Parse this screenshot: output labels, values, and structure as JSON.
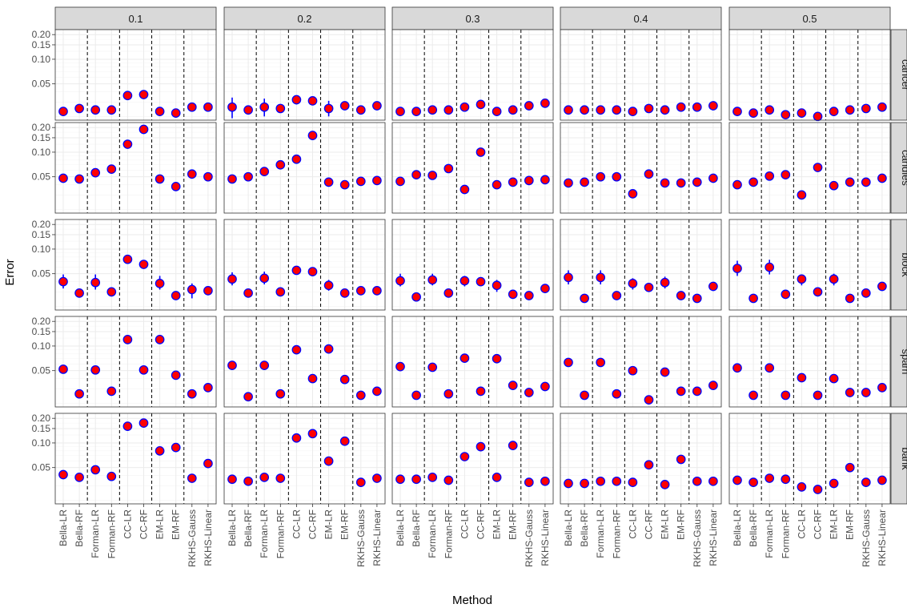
{
  "chart_data": {
    "type": "scatter",
    "xlabel": "Method",
    "ylabel": "Error",
    "y_scale": "log",
    "y_ticks": [
      0.05,
      0.1,
      0.15,
      0.2
    ],
    "y_tick_labels": [
      "0.05",
      "0.10",
      "0.15",
      "0.20"
    ],
    "methods": [
      "Bella-LR",
      "Bella-RF",
      "Forman-LR",
      "Forman-RF",
      "CC-LR",
      "CC-RF",
      "EM-LR",
      "EM-RF",
      "RKHS-Gauss",
      "RKHS-Linear"
    ],
    "dashed_lines_after_method_index": [
      1,
      3,
      5,
      7
    ],
    "columns": [
      "0.1",
      "0.2",
      "0.3",
      "0.4",
      "0.5"
    ],
    "rows": [
      "cancer",
      "candles",
      "block",
      "spam",
      "bank"
    ],
    "point_color": "#ff0000",
    "point_outline": "#0000ff",
    "errorbar_color": "#0000ff",
    "series": [
      {
        "row": "cancer",
        "col": "0.1",
        "values": [
          0.023,
          0.025,
          0.024,
          0.024,
          0.036,
          0.037,
          0.023,
          0.022,
          0.026,
          0.026
        ],
        "err": [
          null,
          null,
          null,
          null,
          null,
          null,
          null,
          null,
          null,
          null
        ]
      },
      {
        "row": "cancer",
        "col": "0.2",
        "values": [
          0.026,
          0.024,
          0.026,
          0.025,
          0.032,
          0.031,
          0.025,
          0.027,
          0.024,
          0.027
        ],
        "err": [
          [
            0.019,
            0.034
          ],
          null,
          [
            0.02,
            0.033
          ],
          null,
          [
            0.028,
            0.036
          ],
          null,
          [
            0.02,
            0.031
          ],
          null,
          null,
          null
        ]
      },
      {
        "row": "cancer",
        "col": "0.3",
        "values": [
          0.023,
          0.023,
          0.024,
          0.024,
          0.026,
          0.028,
          0.023,
          0.024,
          0.027,
          0.029
        ],
        "err": [
          null,
          null,
          null,
          null,
          null,
          null,
          null,
          null,
          null,
          null
        ]
      },
      {
        "row": "cancer",
        "col": "0.4",
        "values": [
          0.024,
          0.024,
          0.024,
          0.024,
          0.023,
          0.025,
          0.024,
          0.026,
          0.026,
          0.027
        ],
        "err": [
          null,
          null,
          null,
          null,
          null,
          null,
          null,
          null,
          null,
          null
        ]
      },
      {
        "row": "cancer",
        "col": "0.5",
        "values": [
          0.023,
          0.022,
          0.024,
          0.021,
          0.022,
          0.02,
          0.023,
          0.024,
          0.025,
          0.026
        ],
        "err": [
          null,
          null,
          null,
          null,
          null,
          null,
          null,
          null,
          null,
          null
        ]
      },
      {
        "row": "candles",
        "col": "0.1",
        "values": [
          0.048,
          0.047,
          0.056,
          0.062,
          0.125,
          0.19,
          0.047,
          0.038,
          0.054,
          0.05
        ],
        "err": [
          null,
          null,
          null,
          null,
          null,
          null,
          null,
          null,
          null,
          null
        ]
      },
      {
        "row": "candles",
        "col": "0.2",
        "values": [
          0.047,
          0.05,
          0.058,
          0.07,
          0.082,
          0.16,
          0.043,
          0.04,
          0.044,
          0.045
        ],
        "err": [
          null,
          null,
          null,
          null,
          null,
          null,
          null,
          null,
          null,
          null
        ]
      },
      {
        "row": "candles",
        "col": "0.3",
        "values": [
          0.044,
          0.053,
          0.052,
          0.063,
          0.035,
          0.1,
          0.04,
          0.043,
          0.045,
          0.046
        ],
        "err": [
          null,
          null,
          null,
          null,
          null,
          null,
          null,
          null,
          null,
          null
        ]
      },
      {
        "row": "candles",
        "col": "0.4",
        "values": [
          0.042,
          0.043,
          0.05,
          0.05,
          0.031,
          0.054,
          0.042,
          0.042,
          0.043,
          0.048
        ],
        "err": [
          null,
          null,
          null,
          null,
          null,
          null,
          null,
          null,
          null,
          null
        ]
      },
      {
        "row": "candles",
        "col": "0.5",
        "values": [
          0.04,
          0.043,
          0.051,
          0.053,
          0.03,
          0.065,
          0.039,
          0.043,
          0.043,
          0.048
        ],
        "err": [
          null,
          null,
          null,
          null,
          null,
          null,
          null,
          null,
          null,
          null
        ]
      },
      {
        "row": "block",
        "col": "0.1",
        "values": [
          0.04,
          0.029,
          0.039,
          0.03,
          0.075,
          0.065,
          0.038,
          0.027,
          0.032,
          0.031
        ],
        "err": [
          [
            0.033,
            0.049
          ],
          null,
          [
            0.032,
            0.049
          ],
          null,
          null,
          null,
          [
            0.032,
            0.047
          ],
          null,
          [
            0.025,
            0.038
          ],
          null
        ]
      },
      {
        "row": "block",
        "col": "0.2",
        "values": [
          0.043,
          0.029,
          0.044,
          0.03,
          0.055,
          0.053,
          0.036,
          0.029,
          0.031,
          0.031
        ],
        "err": [
          [
            0.036,
            0.052
          ],
          null,
          [
            0.037,
            0.053
          ],
          null,
          null,
          null,
          [
            0.031,
            0.042
          ],
          null,
          null,
          null
        ]
      },
      {
        "row": "block",
        "col": "0.3",
        "values": [
          0.041,
          0.026,
          0.042,
          0.029,
          0.041,
          0.04,
          0.036,
          0.028,
          0.027,
          0.033
        ],
        "err": [
          [
            0.035,
            0.05
          ],
          null,
          [
            0.036,
            0.05
          ],
          null,
          [
            0.035,
            0.047
          ],
          null,
          [
            0.03,
            0.042
          ],
          null,
          null,
          null
        ]
      },
      {
        "row": "block",
        "col": "0.4",
        "values": [
          0.045,
          0.025,
          0.045,
          0.027,
          0.038,
          0.034,
          0.039,
          0.027,
          0.025,
          0.035
        ],
        "err": [
          [
            0.037,
            0.055
          ],
          null,
          [
            0.037,
            0.055
          ],
          null,
          [
            0.032,
            0.044
          ],
          null,
          [
            0.033,
            0.046
          ],
          null,
          null,
          null
        ]
      },
      {
        "row": "block",
        "col": "0.5",
        "values": [
          0.058,
          0.025,
          0.06,
          0.028,
          0.043,
          0.03,
          0.043,
          0.025,
          0.029,
          0.035
        ],
        "err": [
          [
            0.047,
            0.072
          ],
          null,
          [
            0.049,
            0.074
          ],
          null,
          [
            0.036,
            0.049
          ],
          null,
          [
            0.036,
            0.05
          ],
          null,
          null,
          null
        ]
      },
      {
        "row": "spam",
        "col": "0.1",
        "values": [
          0.052,
          0.026,
          0.051,
          0.028,
          0.12,
          0.051,
          0.12,
          0.044,
          0.026,
          0.031
        ],
        "err": [
          null,
          null,
          null,
          null,
          null,
          null,
          null,
          null,
          null,
          null
        ]
      },
      {
        "row": "spam",
        "col": "0.2",
        "values": [
          0.058,
          0.024,
          0.058,
          0.026,
          0.09,
          0.04,
          0.092,
          0.039,
          0.025,
          0.028
        ],
        "err": [
          null,
          null,
          null,
          null,
          null,
          null,
          null,
          null,
          null,
          null
        ]
      },
      {
        "row": "spam",
        "col": "0.3",
        "values": [
          0.056,
          0.025,
          0.055,
          0.026,
          0.071,
          0.028,
          0.07,
          0.033,
          0.027,
          0.032
        ],
        "err": [
          null,
          null,
          null,
          null,
          null,
          null,
          null,
          null,
          null,
          null
        ]
      },
      {
        "row": "spam",
        "col": "0.4",
        "values": [
          0.063,
          0.025,
          0.063,
          0.026,
          0.05,
          0.022,
          0.048,
          0.028,
          0.028,
          0.033
        ],
        "err": [
          null,
          null,
          null,
          null,
          null,
          null,
          null,
          null,
          null,
          null
        ]
      },
      {
        "row": "spam",
        "col": "0.5",
        "values": [
          0.054,
          0.025,
          0.054,
          0.025,
          0.041,
          0.025,
          0.04,
          0.027,
          0.027,
          0.031
        ],
        "err": [
          null,
          null,
          null,
          null,
          null,
          null,
          null,
          null,
          null,
          null
        ]
      },
      {
        "row": "bank",
        "col": "0.1",
        "values": [
          0.041,
          0.038,
          0.047,
          0.039,
          0.16,
          0.175,
          0.08,
          0.088,
          0.037,
          0.056
        ],
        "err": [
          null,
          null,
          null,
          null,
          null,
          null,
          null,
          null,
          null,
          null
        ]
      },
      {
        "row": "bank",
        "col": "0.2",
        "values": [
          0.036,
          0.034,
          0.038,
          0.037,
          0.115,
          0.13,
          0.06,
          0.105,
          0.033,
          0.037
        ],
        "err": [
          null,
          null,
          null,
          null,
          null,
          null,
          null,
          null,
          null,
          null
        ]
      },
      {
        "row": "bank",
        "col": "0.3",
        "values": [
          0.036,
          0.036,
          0.038,
          0.035,
          0.068,
          0.09,
          0.038,
          0.093,
          0.033,
          0.034
        ],
        "err": [
          null,
          null,
          null,
          null,
          null,
          null,
          null,
          null,
          null,
          null
        ]
      },
      {
        "row": "bank",
        "col": "0.4",
        "values": [
          0.032,
          0.032,
          0.034,
          0.034,
          0.033,
          0.054,
          0.031,
          0.063,
          0.034,
          0.034
        ],
        "err": [
          null,
          null,
          null,
          null,
          null,
          null,
          null,
          null,
          null,
          null
        ]
      },
      {
        "row": "bank",
        "col": "0.5",
        "values": [
          0.035,
          0.033,
          0.037,
          0.036,
          0.029,
          0.027,
          0.032,
          0.05,
          0.033,
          0.035
        ],
        "err": [
          null,
          null,
          null,
          null,
          null,
          null,
          null,
          null,
          null,
          null
        ]
      }
    ]
  }
}
